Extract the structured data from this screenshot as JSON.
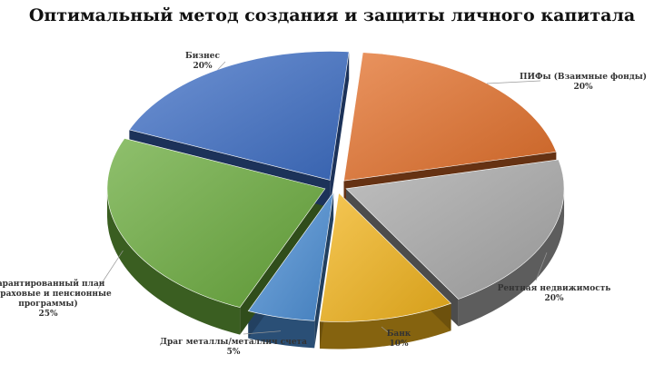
{
  "chart_data": {
    "type": "pie",
    "title": "Оптимальный метод создания и защиты личного капитала",
    "slices": [
      {
        "name": "ПИФы (Взаимные фонды)",
        "value": 20,
        "label_value": "20%",
        "color": "#e3702b"
      },
      {
        "name": "Рентная недвижимость",
        "value": 20,
        "label_value": "20%",
        "color": "#a9a9a9"
      },
      {
        "name": "Банк",
        "value": 10,
        "label_value": "10%",
        "color": "#f2b41c"
      },
      {
        "name": "Драг металлы/металлич счета",
        "value": 5,
        "label_value": "5%",
        "color": "#4c8fd6"
      },
      {
        "name": "Гарантированный план (Страховые и пенсионные программы)",
        "value": 25,
        "label_value": "25%",
        "color": "#6aab3c"
      },
      {
        "name": "Бизнес",
        "value": 20,
        "label_value": "20%",
        "color": "#3f6fc6"
      }
    ],
    "labels_display": [
      [
        "ПИФы (Взаимные фонды)",
        "20%"
      ],
      [
        "Рентная недвижимость",
        "20%"
      ],
      [
        "Банк",
        "10%"
      ],
      [
        "Драг металлы/металлич счета",
        "5%"
      ],
      [
        "Гарантированный план",
        "(Страховые и пенсионные",
        "программы)",
        "25%"
      ],
      [
        "Бизнес",
        "20%"
      ]
    ],
    "legend": "none",
    "style": "3d-exploded"
  }
}
